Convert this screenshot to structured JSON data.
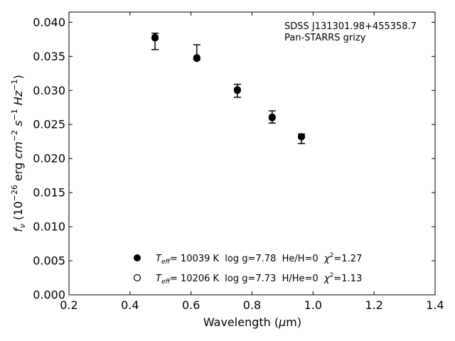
{
  "chart_data": {
    "type": "scatter",
    "xlabel_main": "Wavelength (",
    "xlabel_mu": "μ",
    "xlabel_end": "m)",
    "ylabel_f": "f",
    "ylabel_nu": "ν",
    "ylabel_open": " (10",
    "ylabel_exp1": "−26",
    "ylabel_erg": " erg ",
    "ylabel_cm": "cm",
    "ylabel_exp2": "−2",
    "ylabel_s": "s",
    "ylabel_exp3": "−1",
    "ylabel_hz": "Hz",
    "ylabel_exp4": "−1",
    "ylabel_close": ")",
    "xlim": [
      0.2,
      1.4
    ],
    "ylim": [
      0.0,
      0.0415
    ],
    "xticks": [
      "0.2",
      "0.4",
      "0.6",
      "0.8",
      "1.0",
      "1.2",
      "1.4"
    ],
    "yticks": [
      "0.000",
      "0.005",
      "0.010",
      "0.015",
      "0.020",
      "0.025",
      "0.030",
      "0.035",
      "0.040"
    ],
    "annotation": {
      "line1": "SDSS J131301.98+455358.7",
      "line2": "Pan-STARRS grizy"
    },
    "series": [
      {
        "marker": "filled-circle",
        "color": "#000000",
        "x": [
          0.482,
          0.619,
          0.752,
          0.866,
          0.962
        ],
        "y": [
          0.0378,
          0.0347,
          0.03,
          0.0261,
          0.0232
        ]
      },
      {
        "marker": "open-circle",
        "color": "#000000",
        "x": [
          0.482,
          0.619,
          0.752,
          0.866,
          0.962
        ],
        "y": [
          0.0377,
          0.0348,
          0.0301,
          0.026,
          0.0232
        ]
      }
    ],
    "observed": {
      "x": [
        0.482,
        0.619,
        0.752,
        0.866,
        0.962
      ],
      "y": [
        0.0375,
        0.0356,
        0.03,
        0.0261,
        0.0229
      ],
      "yerr_low": [
        0.0015,
        0.0011,
        0.001,
        0.0009,
        0.0007
      ],
      "yerr_high": [
        0.0009,
        0.0011,
        0.0009,
        0.0009,
        0.0007
      ]
    },
    "legend": [
      {
        "marker": "filled-circle",
        "teff_T": "T",
        "teff_sub": "eff",
        "text": "= 10039 K  log g=7.78  He/H=0  ",
        "chi": "χ",
        "chi_sup": "2",
        "chi_val": "=1.27"
      },
      {
        "marker": "open-circle",
        "teff_T": "T",
        "teff_sub": "eff",
        "text": "= 10206 K  log g=7.73  H/He=0  ",
        "chi": "χ",
        "chi_sup": "2",
        "chi_val": "=1.13"
      }
    ],
    "legend_placement": "lower-center",
    "grid": false
  }
}
